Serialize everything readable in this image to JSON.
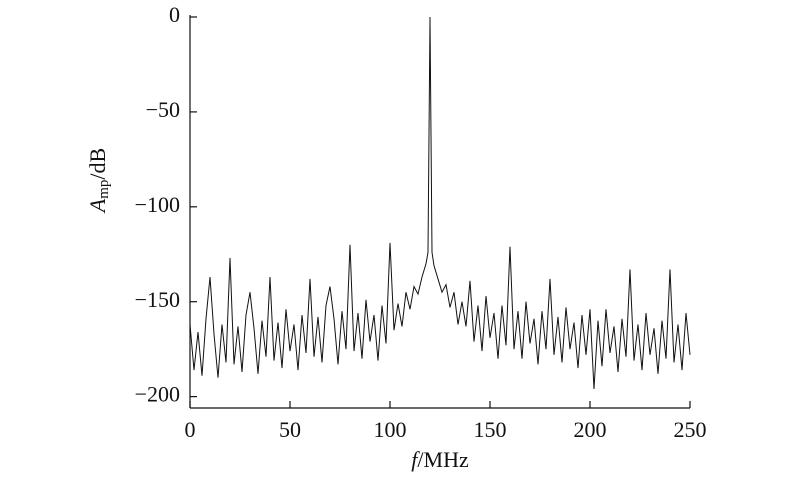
{
  "chart_data": {
    "type": "line",
    "xlabel": {
      "main": "f",
      "rest": "/MHz"
    },
    "ylabel": {
      "main": "A",
      "sub": "mp",
      "rest": "/dB"
    },
    "xlim": [
      0,
      250
    ],
    "ylim": [
      -206,
      0
    ],
    "xticks": [
      0,
      50,
      100,
      150,
      200,
      250
    ],
    "yticks": [
      {
        "value": 0,
        "label": "0"
      },
      {
        "value": -50,
        "label": "−50"
      },
      {
        "value": -100,
        "label": "−100"
      },
      {
        "value": -150,
        "label": "−150"
      },
      {
        "value": -200,
        "label": "−200"
      }
    ],
    "grid": false,
    "series": [
      {
        "color": "#111111",
        "x": [
          0,
          2,
          4,
          6,
          8,
          10,
          12,
          14,
          16,
          18,
          20,
          22,
          24,
          26,
          28,
          30,
          32,
          34,
          36,
          38,
          40,
          42,
          44,
          46,
          48,
          50,
          52,
          54,
          56,
          58,
          60,
          62,
          64,
          66,
          68,
          70,
          72,
          74,
          76,
          78,
          80,
          82,
          84,
          86,
          88,
          90,
          92,
          94,
          96,
          98,
          100,
          102,
          104,
          106,
          108,
          110,
          112,
          114,
          116,
          118,
          119,
          120,
          121,
          122,
          124,
          126,
          128,
          130,
          132,
          134,
          136,
          138,
          140,
          142,
          144,
          146,
          148,
          150,
          152,
          154,
          156,
          158,
          160,
          162,
          164,
          166,
          168,
          170,
          172,
          174,
          176,
          178,
          180,
          182,
          184,
          186,
          188,
          190,
          192,
          194,
          196,
          198,
          200,
          202,
          204,
          206,
          208,
          210,
          212,
          214,
          216,
          218,
          220,
          222,
          224,
          226,
          228,
          230,
          232,
          234,
          236,
          238,
          240,
          242,
          244,
          246,
          248,
          250
        ],
        "values": [
          -162,
          -186,
          -166,
          -189,
          -159,
          -137,
          -167,
          -190,
          -162,
          -182,
          -127,
          -183,
          -163,
          -187,
          -157,
          -145,
          -164,
          -188,
          -160,
          -179,
          -137,
          -181,
          -161,
          -185,
          -154,
          -176,
          -162,
          -186,
          -157,
          -177,
          -138,
          -179,
          -158,
          -182,
          -152,
          -142,
          -159,
          -183,
          -155,
          -175,
          -120,
          -176,
          -156,
          -180,
          -149,
          -171,
          -157,
          -181,
          -152,
          -172,
          -119,
          -165,
          -151,
          -163,
          -145,
          -154,
          -142,
          -146,
          -137,
          -130,
          -124,
          0,
          -124,
          -131,
          -138,
          -145,
          -141,
          -153,
          -145,
          -162,
          -150,
          -163,
          -139,
          -171,
          -152,
          -176,
          -147,
          -169,
          -156,
          -180,
          -152,
          -173,
          -121,
          -175,
          -155,
          -180,
          -150,
          -172,
          -159,
          -183,
          -155,
          -175,
          -138,
          -178,
          -158,
          -182,
          -153,
          -175,
          -161,
          -185,
          -157,
          -178,
          -154,
          -196,
          -160,
          -184,
          -154,
          -177,
          -163,
          -187,
          -159,
          -179,
          -133,
          -181,
          -162,
          -186,
          -156,
          -178,
          -164,
          -188,
          -160,
          -180,
          -133,
          -182,
          -162,
          -186,
          -156,
          -178
        ]
      }
    ]
  }
}
